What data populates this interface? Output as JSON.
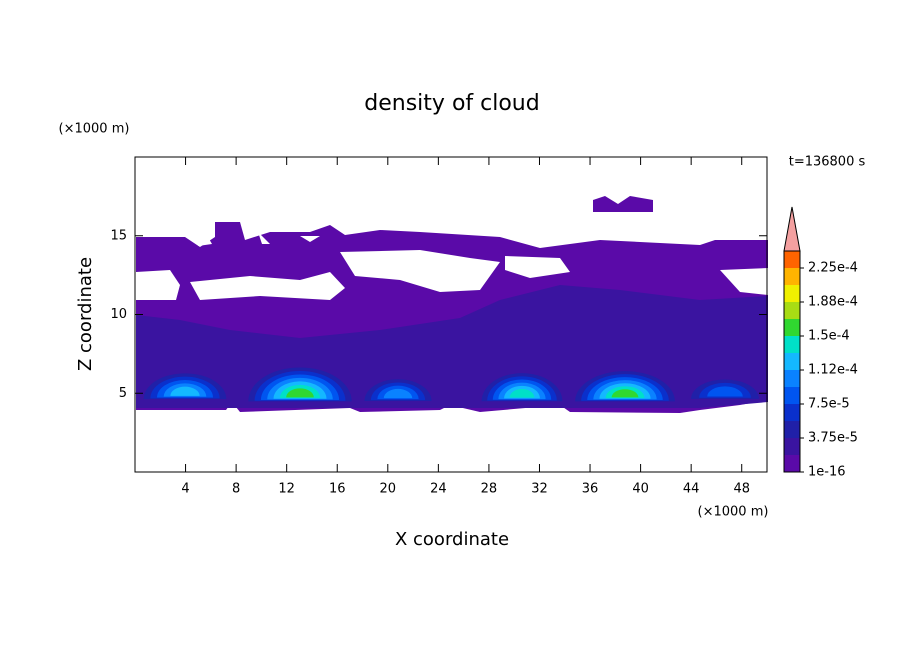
{
  "chart_data": {
    "type": "contour",
    "title": "density of cloud",
    "annotation": "t=136800 s",
    "x_label": "X coordinate",
    "y_label": "Z coordinate",
    "x_unit": "(×1000 m)",
    "y_unit": "(×1000 m)",
    "xlim": [
      0,
      50
    ],
    "xticks": [
      4,
      8,
      12,
      16,
      20,
      24,
      28,
      32,
      36,
      40,
      44,
      48
    ],
    "ylim": [
      0,
      20
    ],
    "yticks": [
      5,
      10,
      15
    ],
    "levels": [
      1e-16,
      1.875e-05,
      3.75e-05,
      5.625e-05,
      7.5e-05,
      9.375e-05,
      0.0001125,
      0.00013125,
      0.00015,
      0.00016875,
      0.0001875,
      0.00020625,
      0.000225
    ],
    "level_colors": [
      "#5a0aa8",
      "#3a14a0",
      "#2020a8",
      "#0a30cc",
      "#0055f0",
      "#0a82ff",
      "#14b8ff",
      "#00e0c8",
      "#30d830",
      "#a8dc14",
      "#f0f000",
      "#ffb400",
      "#ff6400"
    ],
    "clim": [
      1e-16,
      0.00024375
    ],
    "extend_color": "#f4a0a0",
    "colorbar_ticks": [
      {
        "value": 1e-16,
        "label": "1e-16"
      },
      {
        "value": 3.75e-05,
        "label": "3.75e-5"
      },
      {
        "value": 7.5e-05,
        "label": "7.5e-5"
      },
      {
        "value": 0.0001125,
        "label": "1.12e-4"
      },
      {
        "value": 0.00015,
        "label": "1.5e-4"
      },
      {
        "value": 0.0001875,
        "label": "1.88e-4"
      },
      {
        "value": 0.000225,
        "label": "2.25e-4"
      }
    ]
  }
}
